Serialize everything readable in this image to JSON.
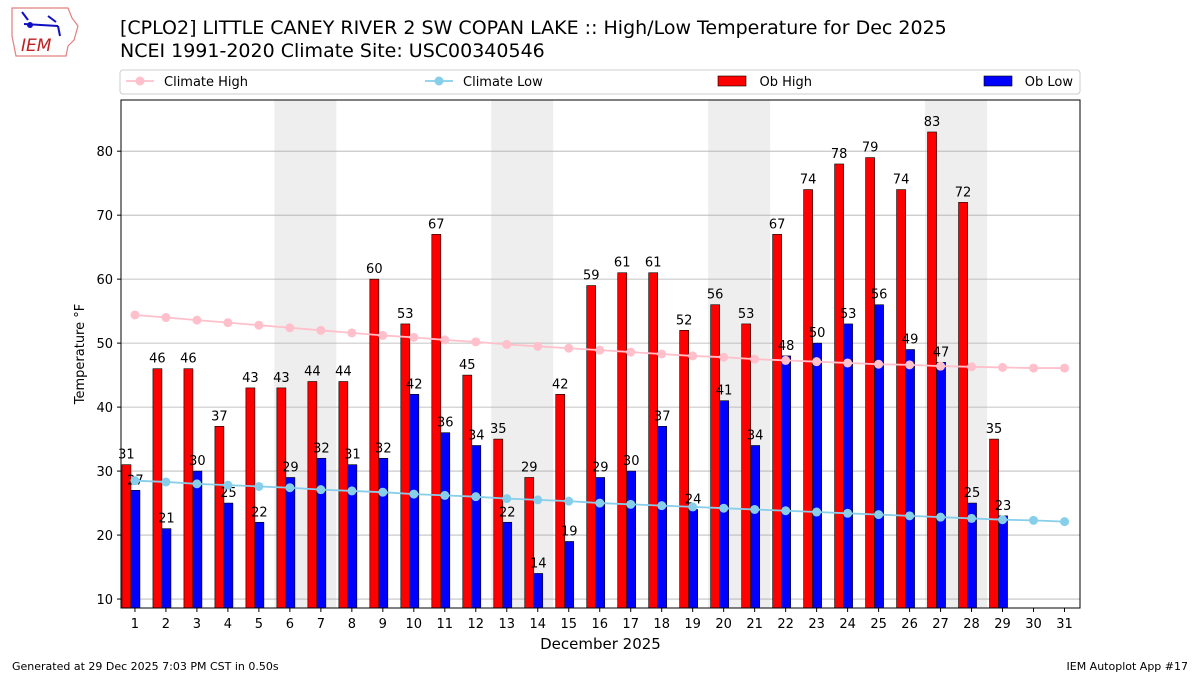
{
  "header": {
    "title_line1": "[CPLO2] LITTLE CANEY RIVER 2 SW COPAN LAKE :: High/Low Temperature for Dec 2025",
    "title_line2": "NCEI 1991-2020 Climate Site: USC00340546",
    "logo_text": "IEM"
  },
  "footer": {
    "left": "Generated at 29 Dec 2025 7:03 PM CST in 0.50s",
    "right": "IEM Autoplot App #17"
  },
  "colors": {
    "ob_high": "#ff0000",
    "ob_low": "#0000ff",
    "climate_high": "#ffc0cb",
    "climate_low": "#87ceeb",
    "weekend": "#eeeeee"
  },
  "chart_data": {
    "type": "bar",
    "xlabel": "December 2025",
    "ylabel": "Temperature °F",
    "ylim": [
      8.6,
      88
    ],
    "yticks": [
      10,
      20,
      30,
      40,
      50,
      60,
      70,
      80
    ],
    "grid": "horizontal",
    "legend_position": "top",
    "legend": [
      "Climate High",
      "Climate Low",
      "Ob High",
      "Ob Low"
    ],
    "days": [
      1,
      2,
      3,
      4,
      5,
      6,
      7,
      8,
      9,
      10,
      11,
      12,
      13,
      14,
      15,
      16,
      17,
      18,
      19,
      20,
      21,
      22,
      23,
      24,
      25,
      26,
      27,
      28,
      29,
      30,
      31
    ],
    "weekend_spans": [
      [
        6,
        7
      ],
      [
        13,
        14
      ],
      [
        20,
        21
      ],
      [
        27,
        28
      ]
    ],
    "series": [
      {
        "name": "Ob High",
        "type": "bar",
        "values": [
          31,
          46,
          46,
          37,
          43,
          43,
          44,
          44,
          60,
          53,
          67,
          45,
          35,
          29,
          42,
          59,
          61,
          61,
          52,
          56,
          53,
          67,
          74,
          78,
          79,
          74,
          83,
          72,
          35
        ]
      },
      {
        "name": "Ob Low",
        "type": "bar",
        "values": [
          27,
          21,
          30,
          25,
          22,
          29,
          32,
          31,
          32,
          42,
          36,
          34,
          22,
          14,
          19,
          29,
          30,
          37,
          24,
          41,
          34,
          48,
          50,
          53,
          56,
          49,
          47,
          25,
          23
        ]
      },
      {
        "name": "Climate High",
        "type": "line",
        "values": [
          54.4,
          54.0,
          53.6,
          53.2,
          52.8,
          52.4,
          52.0,
          51.6,
          51.2,
          50.9,
          50.5,
          50.2,
          49.8,
          49.5,
          49.2,
          48.9,
          48.6,
          48.3,
          48.0,
          47.8,
          47.5,
          47.3,
          47.1,
          46.9,
          46.7,
          46.6,
          46.4,
          46.3,
          46.2,
          46.1,
          46.1
        ]
      },
      {
        "name": "Climate Low",
        "type": "line",
        "values": [
          28.5,
          28.3,
          28.0,
          27.8,
          27.6,
          27.4,
          27.1,
          26.9,
          26.7,
          26.4,
          26.2,
          26.0,
          25.7,
          25.5,
          25.3,
          25.0,
          24.8,
          24.6,
          24.4,
          24.2,
          24.0,
          23.8,
          23.6,
          23.4,
          23.2,
          23.0,
          22.8,
          22.6,
          22.4,
          22.3,
          22.1
        ]
      }
    ]
  }
}
